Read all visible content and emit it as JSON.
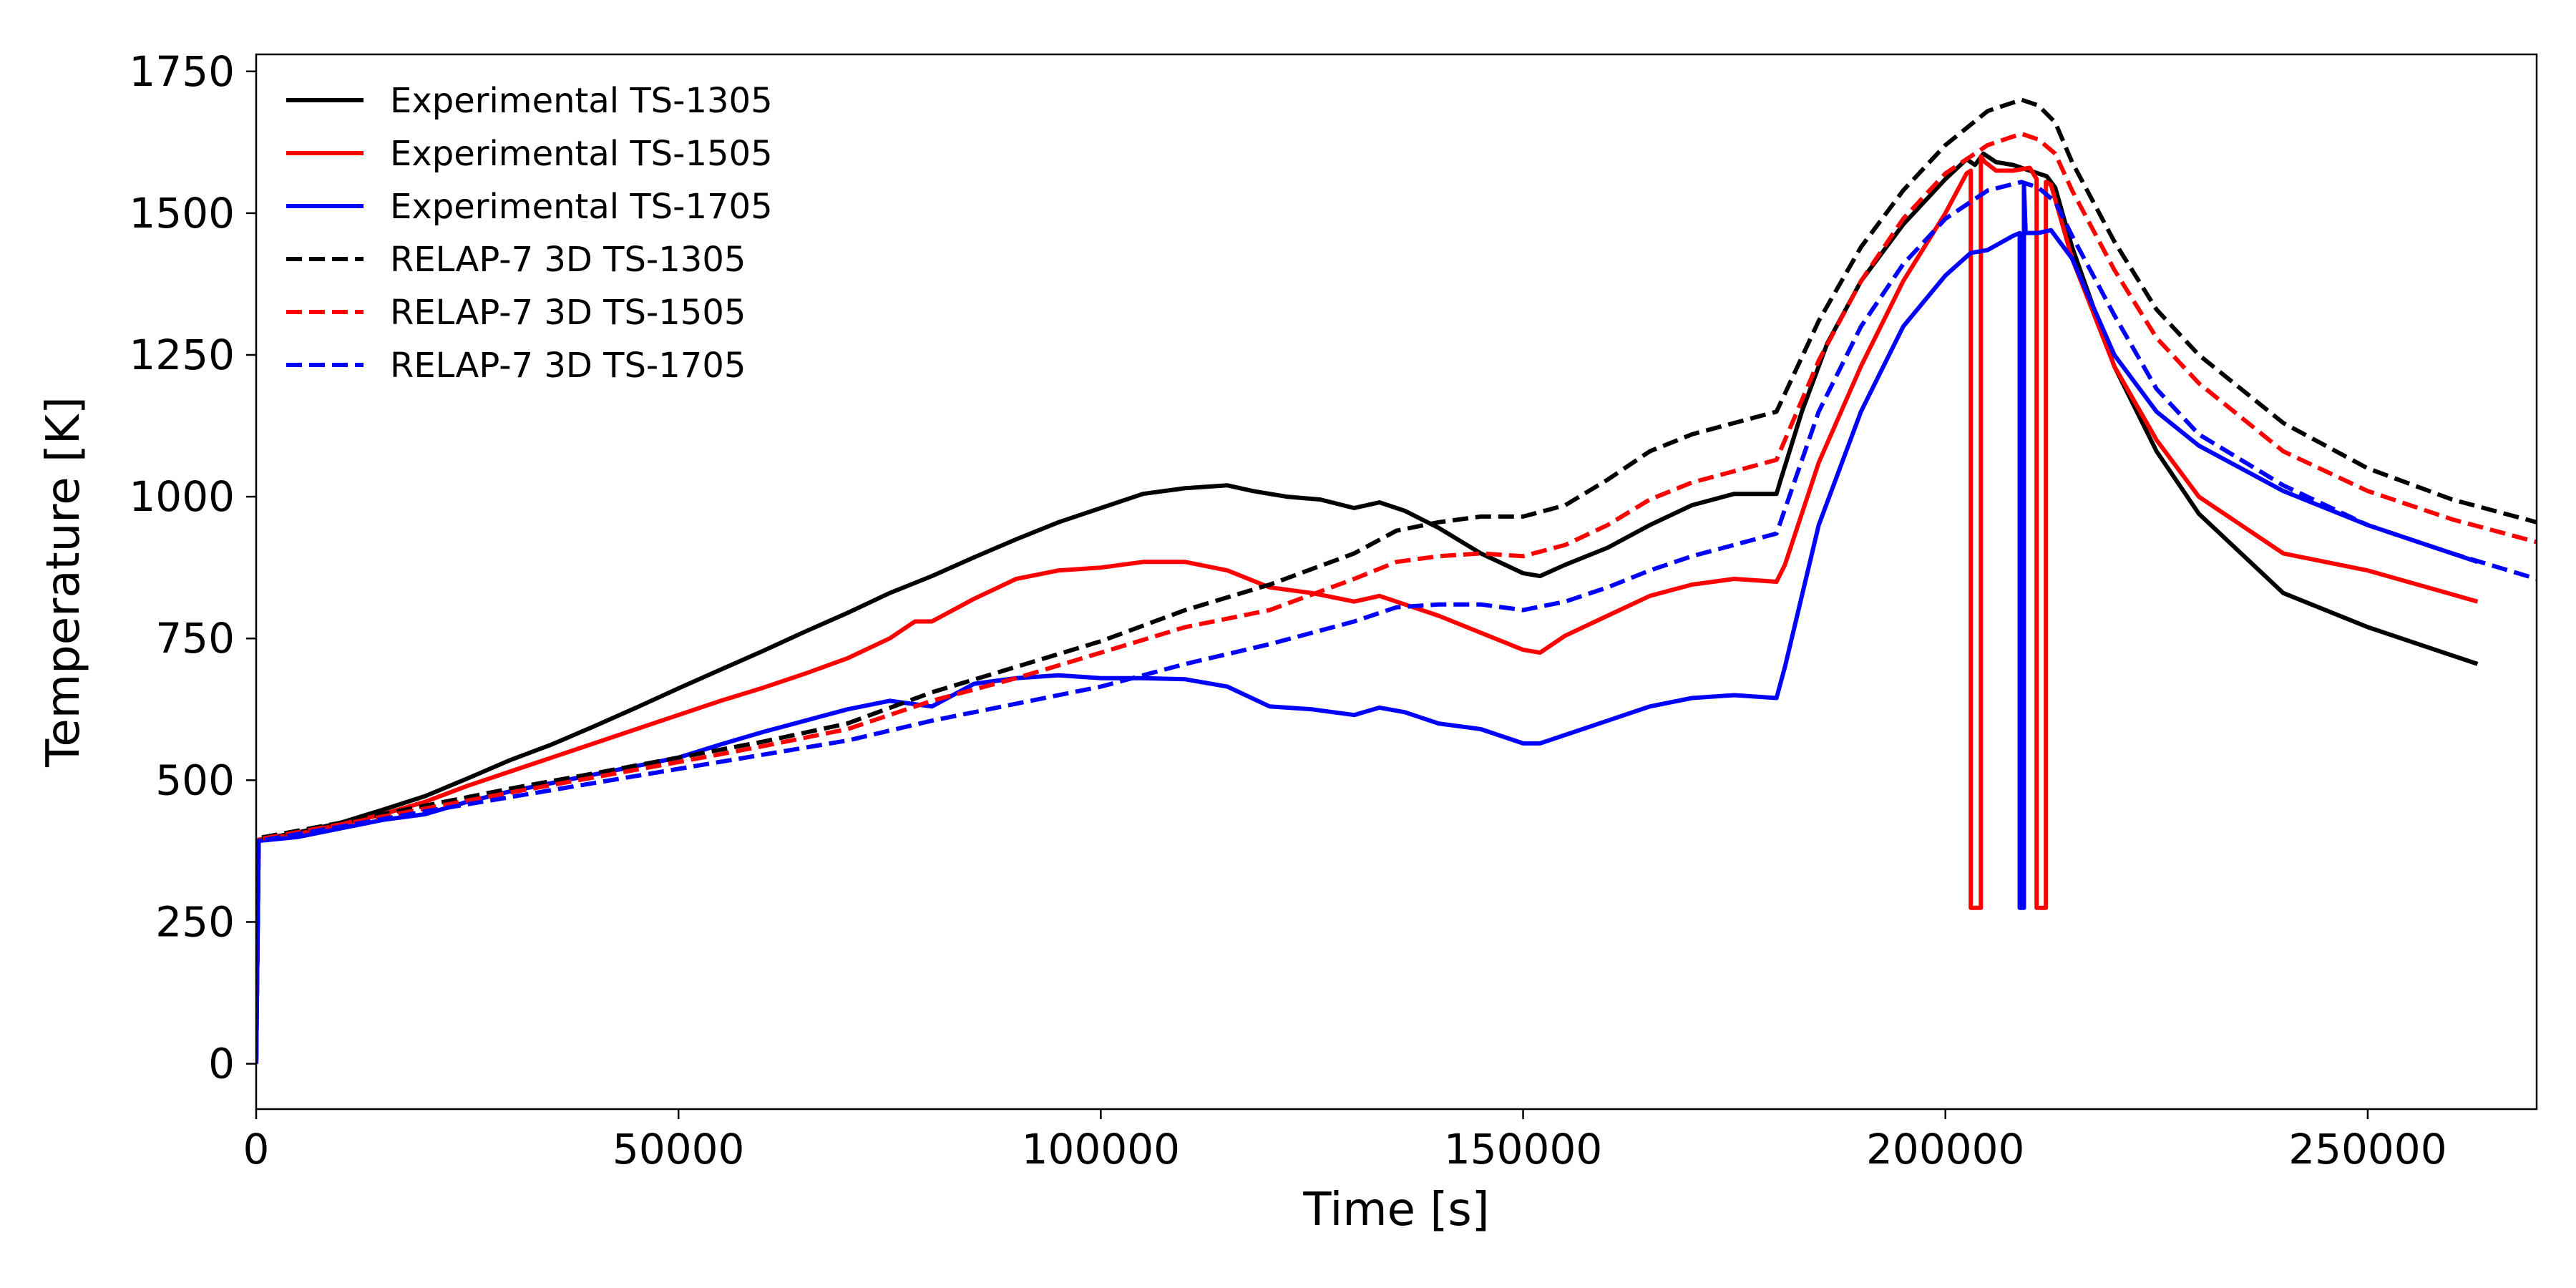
{
  "chart_data": {
    "type": "line",
    "xlabel": "Time [s]",
    "ylabel": "Temperature [K]",
    "xlim": [
      0,
      270000
    ],
    "ylim": [
      -80,
      1780
    ],
    "xticks": [
      0,
      50000,
      100000,
      150000,
      200000,
      250000
    ],
    "xtick_labels": [
      "0",
      "50000",
      "100000",
      "150000",
      "200000",
      "250000"
    ],
    "yticks": [
      0,
      250,
      500,
      750,
      1000,
      1250,
      1500,
      1750
    ],
    "ytick_labels": [
      "0",
      "250",
      "500",
      "750",
      "1000",
      "1250",
      "1500",
      "1750"
    ],
    "grid": false,
    "legend_position": "upper-left",
    "series": [
      {
        "name": "Experimental TS-1305",
        "color": "#000000",
        "dash": "solid",
        "x": [
          0,
          300,
          5000,
          10000,
          15000,
          20000,
          25000,
          30000,
          35000,
          40000,
          45000,
          50000,
          55000,
          60000,
          65000,
          70000,
          75000,
          80000,
          85000,
          90000,
          95000,
          100000,
          105000,
          110000,
          115000,
          118000,
          122000,
          126000,
          130000,
          133000,
          136000,
          140000,
          145000,
          150000,
          152000,
          155000,
          160000,
          165000,
          170000,
          175000,
          180000,
          180500,
          183000,
          186000,
          190000,
          195000,
          200000,
          202500,
          203500,
          204500,
          206000,
          208000,
          210000,
          212000,
          213000,
          215000,
          220000,
          225000,
          230000,
          240000,
          250000,
          263000
        ],
        "y": [
          0,
          395,
          408,
          425,
          448,
          472,
          503,
          535,
          563,
          595,
          628,
          662,
          695,
          728,
          762,
          795,
          830,
          860,
          893,
          925,
          955,
          980,
          1005,
          1015,
          1020,
          1010,
          1000,
          995,
          980,
          990,
          975,
          945,
          900,
          865,
          860,
          880,
          910,
          950,
          985,
          1005,
          1005,
          1030,
          1150,
          1270,
          1380,
          1480,
          1560,
          1595,
          1585,
          1605,
          1590,
          1585,
          1575,
          1565,
          1545,
          1440,
          1230,
          1080,
          970,
          830,
          770,
          705
        ]
      },
      {
        "name": "Experimental TS-1505",
        "color": "#ff0000",
        "dash": "solid",
        "x": [
          0,
          300,
          5000,
          10000,
          15000,
          20000,
          25000,
          30000,
          35000,
          40000,
          45000,
          50000,
          55000,
          60000,
          65000,
          70000,
          75000,
          78000,
          80000,
          85000,
          90000,
          95000,
          100000,
          105000,
          110000,
          115000,
          120000,
          125000,
          130000,
          133000,
          136000,
          140000,
          145000,
          150000,
          152000,
          155000,
          160000,
          165000,
          170000,
          175000,
          180000,
          181000,
          185000,
          190000,
          195000,
          200000,
          202500,
          203000,
          203001,
          204200,
          204201,
          204700,
          206000,
          208000,
          210000,
          210800,
          210801,
          211900,
          211901,
          212500,
          215000,
          220000,
          225000,
          230000,
          240000,
          250000,
          263000
        ],
        "y": [
          0,
          395,
          405,
          422,
          440,
          462,
          490,
          515,
          540,
          565,
          590,
          615,
          640,
          663,
          688,
          715,
          750,
          780,
          780,
          820,
          855,
          870,
          875,
          885,
          885,
          870,
          840,
          830,
          815,
          825,
          810,
          790,
          760,
          730,
          725,
          755,
          790,
          825,
          845,
          855,
          850,
          880,
          1060,
          1230,
          1380,
          1500,
          1570,
          1575,
          275,
          275,
          1600,
          1590,
          1575,
          1575,
          1580,
          1560,
          275,
          275,
          1555,
          1550,
          1420,
          1230,
          1100,
          1000,
          900,
          870,
          815
        ]
      },
      {
        "name": "Experimental TS-1705",
        "color": "#0000ff",
        "dash": "solid",
        "x": [
          0,
          300,
          5000,
          10000,
          15000,
          20000,
          25000,
          30000,
          35000,
          40000,
          45000,
          50000,
          55000,
          60000,
          65000,
          70000,
          75000,
          80000,
          85000,
          90000,
          95000,
          100000,
          105000,
          110000,
          115000,
          120000,
          125000,
          130000,
          133000,
          136000,
          140000,
          145000,
          150000,
          152000,
          155000,
          160000,
          165000,
          170000,
          175000,
          180000,
          181000,
          185000,
          190000,
          195000,
          200000,
          203000,
          205000,
          208000,
          208800,
          208801,
          209300,
          209301,
          209500,
          211000,
          212500,
          215000,
          220000,
          225000,
          230000,
          240000,
          250000,
          263000
        ],
        "y": [
          0,
          393,
          400,
          415,
          430,
          440,
          462,
          480,
          495,
          510,
          525,
          540,
          563,
          585,
          605,
          625,
          640,
          630,
          670,
          680,
          685,
          680,
          680,
          678,
          665,
          630,
          625,
          615,
          628,
          620,
          600,
          590,
          565,
          565,
          580,
          605,
          630,
          645,
          650,
          645,
          700,
          950,
          1150,
          1300,
          1390,
          1430,
          1435,
          1460,
          1465,
          275,
          275,
          1550,
          1465,
          1465,
          1470,
          1420,
          1250,
          1150,
          1090,
          1010,
          950,
          885
        ]
      },
      {
        "name": "RELAP-7 3D TS-1305",
        "color": "#000000",
        "dash": "dashed",
        "x": [
          0,
          300,
          10000,
          20000,
          30000,
          40000,
          50000,
          60000,
          70000,
          80000,
          90000,
          100000,
          110000,
          120000,
          130000,
          135000,
          140000,
          145000,
          150000,
          155000,
          160000,
          165000,
          170000,
          175000,
          180000,
          185000,
          190000,
          195000,
          200000,
          205000,
          209000,
          211000,
          213000,
          215000,
          220000,
          225000,
          230000,
          240000,
          250000,
          260000,
          270000
        ],
        "y": [
          0,
          398,
          425,
          455,
          485,
          512,
          540,
          568,
          600,
          655,
          700,
          745,
          800,
          845,
          900,
          940,
          955,
          965,
          965,
          985,
          1030,
          1080,
          1110,
          1130,
          1150,
          1310,
          1440,
          1540,
          1620,
          1680,
          1700,
          1690,
          1660,
          1590,
          1450,
          1330,
          1250,
          1130,
          1050,
          995,
          955
        ]
      },
      {
        "name": "RELAP-7 3D TS-1505",
        "color": "#ff0000",
        "dash": "dashed",
        "x": [
          0,
          300,
          10000,
          20000,
          30000,
          40000,
          50000,
          60000,
          70000,
          80000,
          90000,
          100000,
          110000,
          120000,
          130000,
          135000,
          140000,
          145000,
          150000,
          155000,
          160000,
          165000,
          170000,
          175000,
          180000,
          185000,
          190000,
          195000,
          200000,
          205000,
          209000,
          211000,
          213000,
          215000,
          220000,
          225000,
          230000,
          240000,
          250000,
          260000,
          270000
        ],
        "y": [
          0,
          396,
          422,
          450,
          478,
          505,
          532,
          560,
          590,
          640,
          680,
          725,
          770,
          800,
          855,
          885,
          895,
          900,
          895,
          915,
          950,
          995,
          1025,
          1045,
          1065,
          1240,
          1380,
          1490,
          1570,
          1620,
          1640,
          1630,
          1605,
          1540,
          1400,
          1280,
          1200,
          1080,
          1010,
          960,
          920
        ]
      },
      {
        "name": "RELAP-7 3D TS-1705",
        "color": "#0000ff",
        "dash": "dashed",
        "x": [
          0,
          300,
          10000,
          20000,
          30000,
          40000,
          50000,
          60000,
          70000,
          80000,
          90000,
          100000,
          110000,
          120000,
          130000,
          135000,
          140000,
          145000,
          150000,
          155000,
          160000,
          165000,
          170000,
          175000,
          180000,
          185000,
          190000,
          195000,
          200000,
          205000,
          209000,
          211000,
          213000,
          215000,
          220000,
          225000,
          230000,
          240000,
          250000,
          260000,
          270000
        ],
        "y": [
          0,
          393,
          418,
          445,
          470,
          495,
          520,
          545,
          570,
          605,
          635,
          665,
          705,
          740,
          780,
          805,
          810,
          810,
          800,
          815,
          840,
          870,
          895,
          915,
          935,
          1150,
          1300,
          1410,
          1490,
          1540,
          1555,
          1545,
          1520,
          1460,
          1320,
          1190,
          1110,
          1020,
          950,
          900,
          855
        ]
      }
    ]
  }
}
